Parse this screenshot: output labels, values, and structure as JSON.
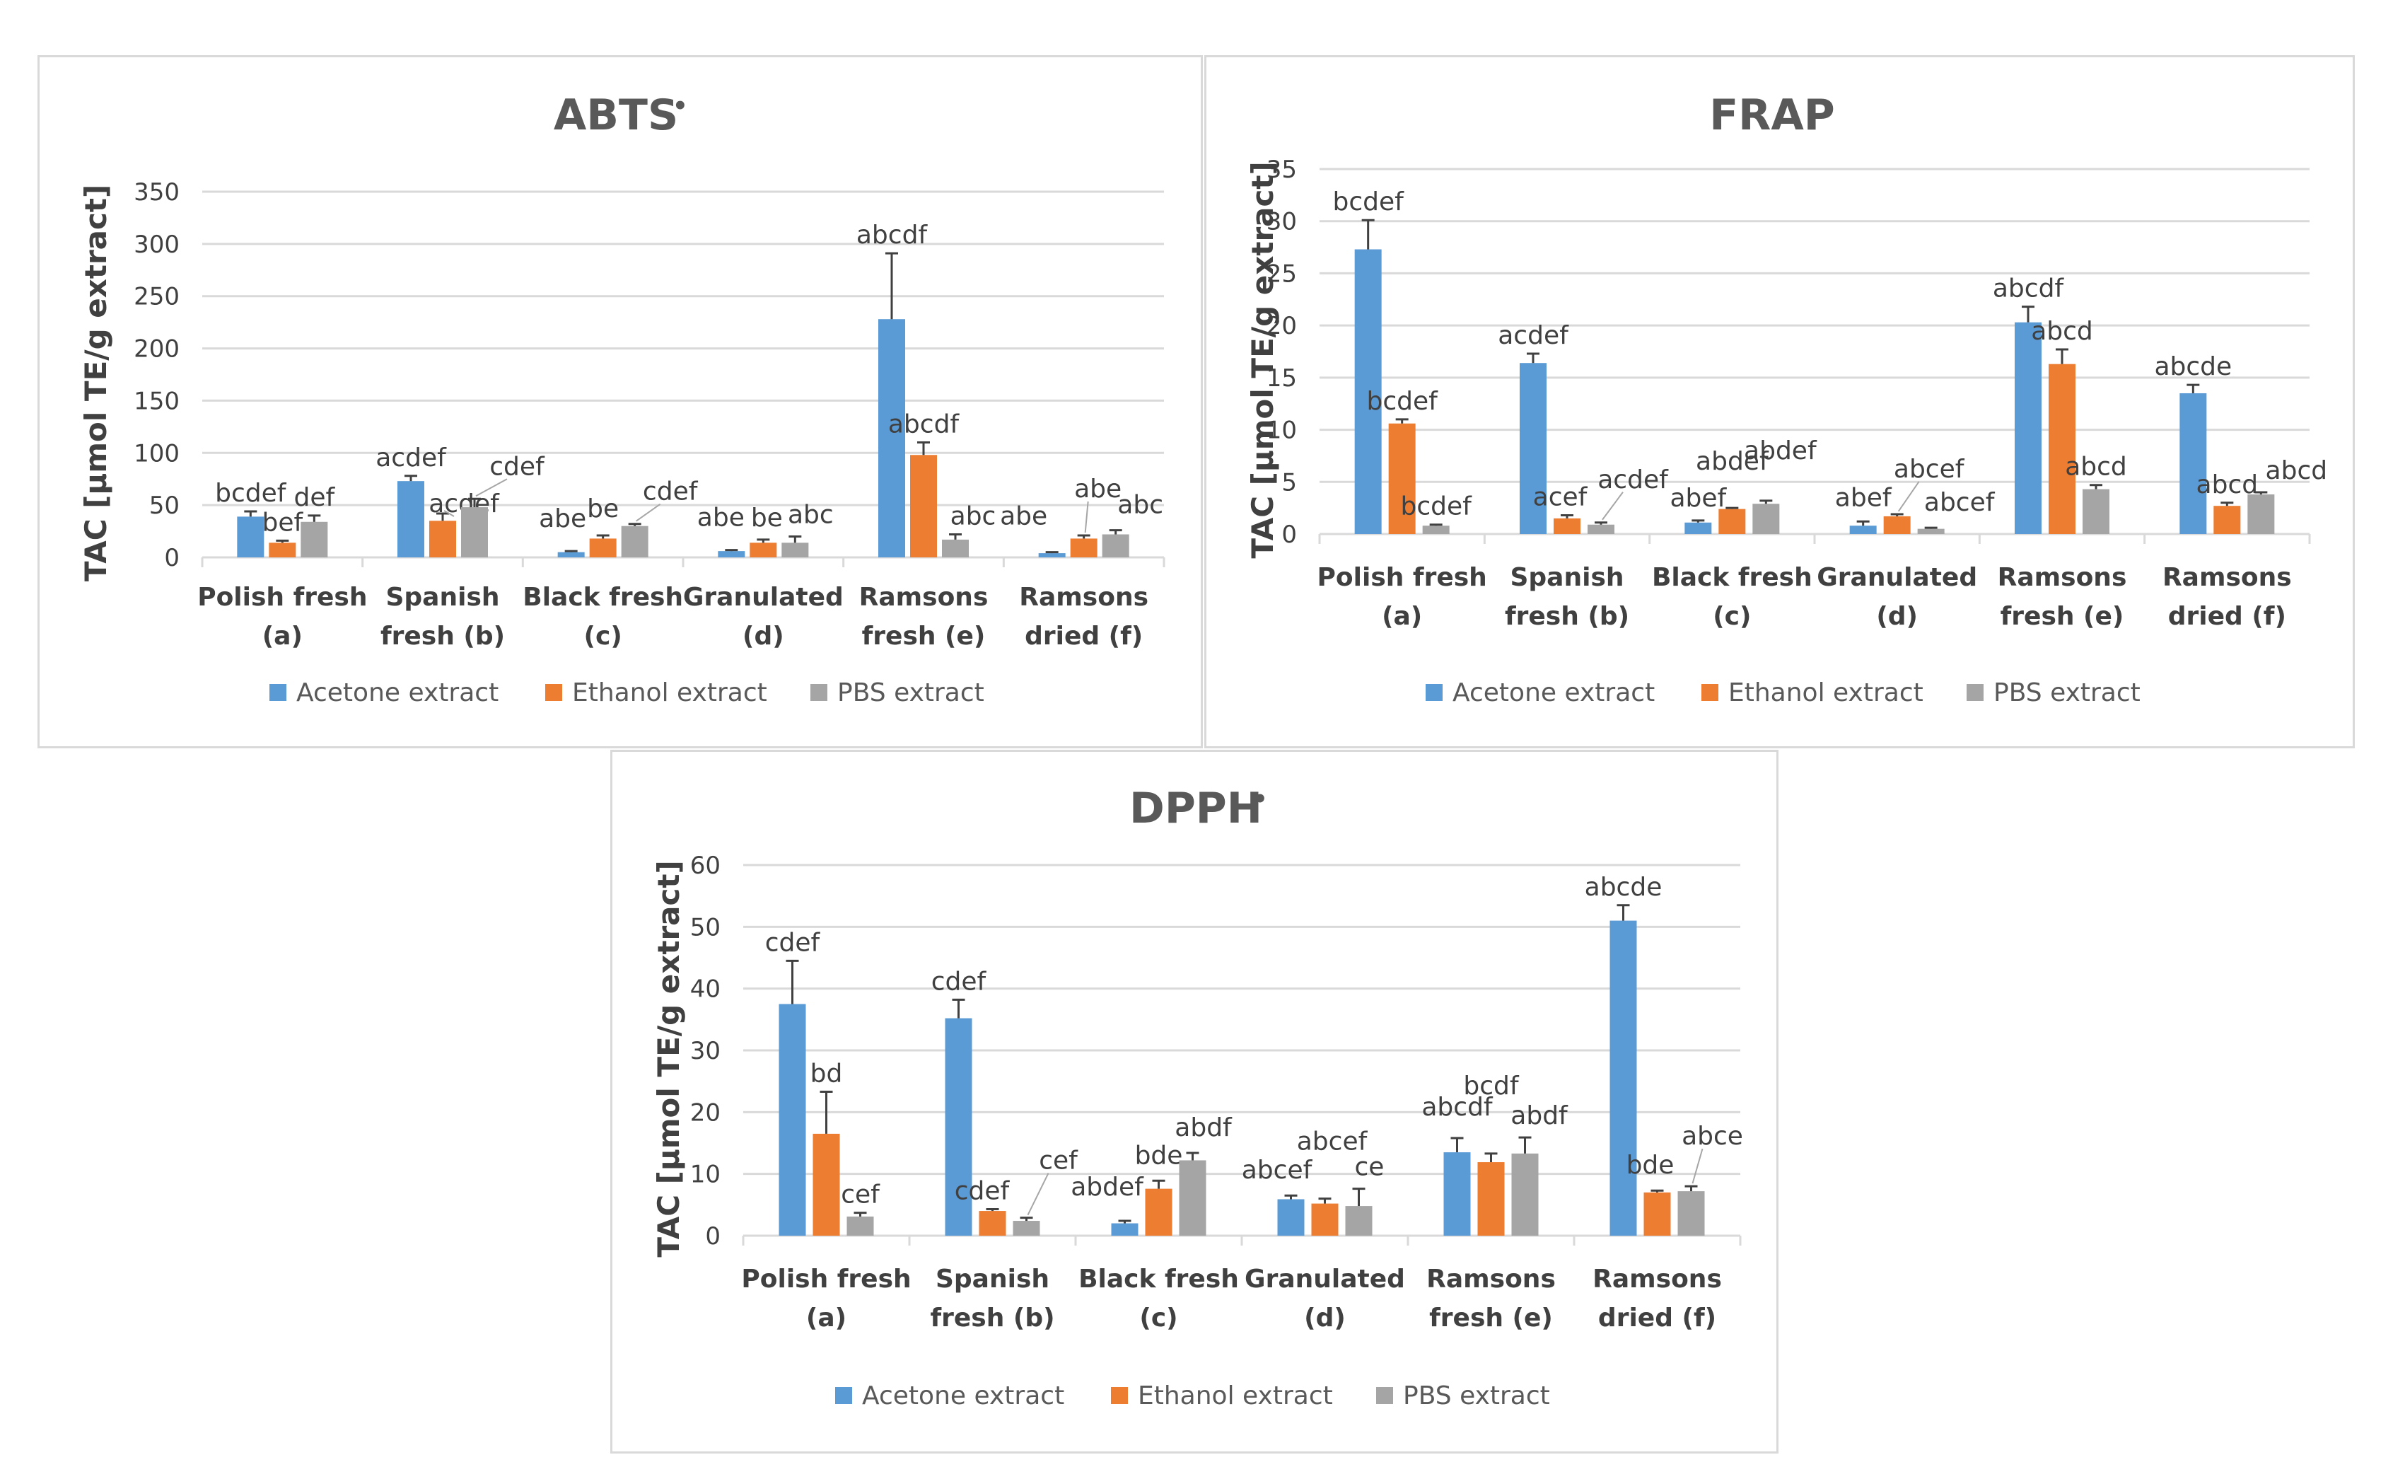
{
  "chart_data": [
    {
      "type": "bar",
      "title": "ABTS",
      "title_suffix": "•",
      "ylabel": "TAC [µmol TE/g extract]",
      "xlabel": "",
      "ylim": [
        0,
        350
      ],
      "yticks": [
        0,
        50,
        100,
        150,
        200,
        250,
        300,
        350
      ],
      "grid": true,
      "legend": "bottom",
      "categories": [
        [
          "Polish fresh",
          "(a)"
        ],
        [
          "Spanish",
          "fresh (b)"
        ],
        [
          "Black fresh",
          "(c)"
        ],
        [
          "Granulated",
          "(d)"
        ],
        [
          "Ramsons",
          "fresh (e)"
        ],
        [
          "Ramsons",
          "dried (f)"
        ]
      ],
      "series": [
        {
          "name": "Acetone extract",
          "color": "#5b9bd5",
          "values": [
            39,
            73,
            5,
            6,
            228,
            4
          ],
          "errors": [
            5,
            5,
            1,
            1,
            63,
            1
          ],
          "labels": [
            "bcdef",
            "acdef",
            "abe",
            "abe",
            "abcdf",
            "abe"
          ]
        },
        {
          "name": "Ethanol extract",
          "color": "#ed7d31",
          "values": [
            14,
            35,
            18,
            14,
            98,
            18
          ],
          "errors": [
            2,
            7,
            3,
            3,
            12,
            3
          ],
          "labels": [
            "bef",
            "acdef",
            "be",
            "be",
            "abcdf",
            "abe"
          ]
        },
        {
          "name": "PBS extract",
          "color": "#a5a5a5",
          "values": [
            34,
            48,
            30,
            14,
            17,
            22
          ],
          "errors": [
            6,
            8,
            2,
            6,
            5,
            4
          ],
          "labels": [
            "def",
            "cdef",
            "cdef",
            "abc",
            "abc",
            "abc"
          ]
        }
      ]
    },
    {
      "type": "bar",
      "title": "FRAP",
      "title_suffix": "",
      "ylabel": "TAC [µmol TE/g extract]",
      "xlabel": "",
      "ylim": [
        0,
        35
      ],
      "yticks": [
        0,
        5,
        10,
        15,
        20,
        25,
        30,
        35
      ],
      "grid": true,
      "legend": "bottom",
      "categories": [
        [
          "Polish fresh",
          "(a)"
        ],
        [
          "Spanish",
          "fresh (b)"
        ],
        [
          "Black fresh",
          "(c)"
        ],
        [
          "Granulated",
          "(d)"
        ],
        [
          "Ramsons",
          "fresh (e)"
        ],
        [
          "Ramsons",
          "dried (f)"
        ]
      ],
      "series": [
        {
          "name": "Acetone extract",
          "color": "#5b9bd5",
          "values": [
            27.3,
            16.4,
            1.1,
            0.8,
            20.3,
            13.5
          ],
          "errors": [
            2.8,
            0.9,
            0.2,
            0.4,
            1.5,
            0.8
          ],
          "labels": [
            "bcdef",
            "acdef",
            "abef",
            "abef",
            "abcdf",
            "abcde"
          ]
        },
        {
          "name": "Ethanol extract",
          "color": "#ed7d31",
          "values": [
            10.6,
            1.5,
            2.4,
            1.7,
            16.3,
            2.7
          ],
          "errors": [
            0.4,
            0.3,
            0.1,
            0.2,
            1.4,
            0.3
          ],
          "labels": [
            "bcdef",
            "acef",
            "abdef",
            "abcef",
            "abcd",
            "abcd"
          ]
        },
        {
          "name": "PBS extract",
          "color": "#a5a5a5",
          "values": [
            0.8,
            0.9,
            2.9,
            0.5,
            4.3,
            3.8
          ],
          "errors": [
            0.1,
            0.2,
            0.3,
            0.1,
            0.4,
            0.2
          ],
          "labels": [
            "bcdef",
            "acdef",
            "abdef",
            "abcef",
            "abcd",
            "abcd"
          ]
        }
      ]
    },
    {
      "type": "bar",
      "title": "DPPH",
      "title_suffix": "•",
      "ylabel": "TAC [µmol TE/g extract]",
      "xlabel": "",
      "ylim": [
        0,
        60
      ],
      "yticks": [
        0,
        10,
        20,
        30,
        40,
        50,
        60
      ],
      "grid": true,
      "legend": "bottom",
      "categories": [
        [
          "Polish fresh",
          "(a)"
        ],
        [
          "Spanish",
          "fresh (b)"
        ],
        [
          "Black fresh",
          "(c)"
        ],
        [
          "Granulated",
          "(d)"
        ],
        [
          "Ramsons",
          "fresh (e)"
        ],
        [
          "Ramsons",
          "dried (f)"
        ]
      ],
      "series": [
        {
          "name": "Acetone extract",
          "color": "#5b9bd5",
          "values": [
            37.5,
            35.2,
            2.0,
            5.9,
            13.5,
            51.0
          ],
          "errors": [
            7.0,
            3.0,
            0.4,
            0.6,
            2.3,
            2.5
          ],
          "labels": [
            "cdef",
            "cdef",
            "abdef",
            "abcef",
            "abcdf",
            "abcde"
          ]
        },
        {
          "name": "Ethanol extract",
          "color": "#ed7d31",
          "values": [
            16.5,
            4.0,
            7.6,
            5.2,
            11.9,
            7.0
          ],
          "errors": [
            6.8,
            0.3,
            1.3,
            0.8,
            1.4,
            0.3
          ],
          "labels": [
            "bd",
            "cdef",
            "bde",
            "abcef",
            "bcdf",
            "bde"
          ]
        },
        {
          "name": "PBS extract",
          "color": "#a5a5a5",
          "values": [
            3.1,
            2.4,
            12.2,
            4.8,
            13.3,
            7.2
          ],
          "errors": [
            0.6,
            0.5,
            1.2,
            2.8,
            2.6,
            0.8
          ],
          "labels": [
            "cef",
            "cef",
            "abdf",
            "ce",
            "abdf",
            "abce"
          ]
        }
      ]
    }
  ]
}
